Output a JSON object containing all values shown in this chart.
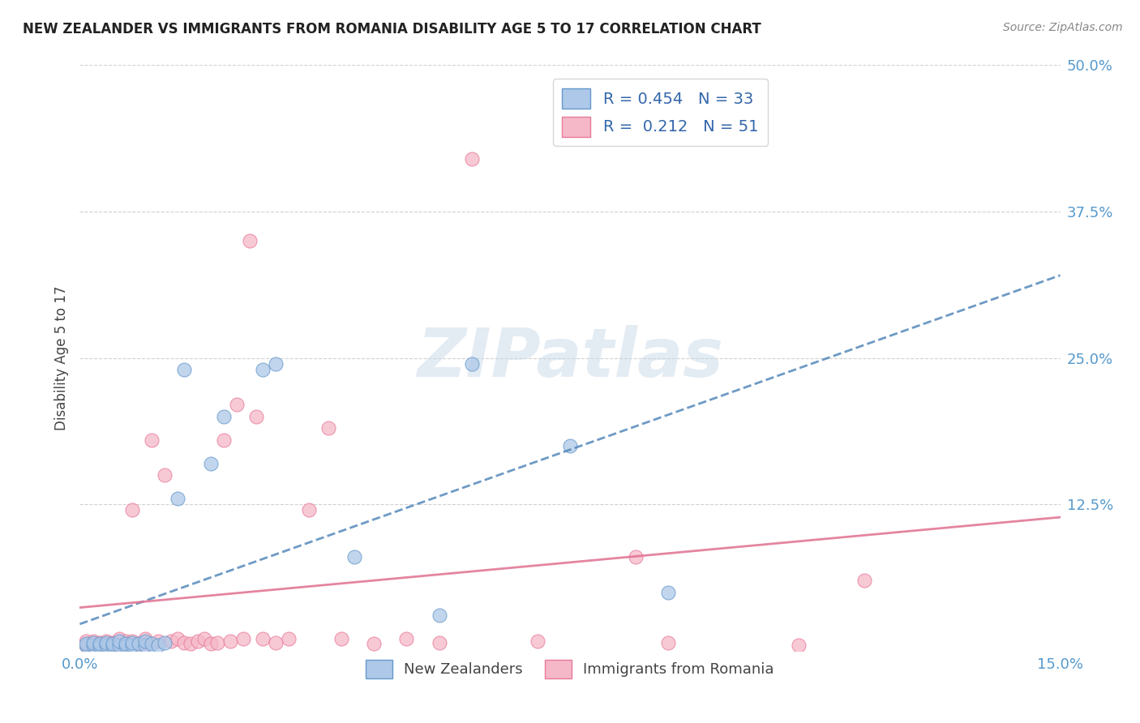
{
  "title": "NEW ZEALANDER VS IMMIGRANTS FROM ROMANIA DISABILITY AGE 5 TO 17 CORRELATION CHART",
  "source": "Source: ZipAtlas.com",
  "ylabel": "Disability Age 5 to 17",
  "xlim": [
    0.0,
    0.15
  ],
  "ylim": [
    0.0,
    0.5
  ],
  "xticks": [
    0.0,
    0.05,
    0.1,
    0.15
  ],
  "xticklabels": [
    "0.0%",
    "",
    "",
    "15.0%"
  ],
  "yticks": [
    0.0,
    0.125,
    0.25,
    0.375,
    0.5
  ],
  "yticklabels": [
    "",
    "12.5%",
    "25.0%",
    "37.5%",
    "50.0%"
  ],
  "legend_r_nz": "0.454",
  "legend_n_nz": "33",
  "legend_r_ro": "0.212",
  "legend_n_ro": "51",
  "color_nz": "#adc8e8",
  "color_ro": "#f5b8c8",
  "edge_nz": "#6699cc",
  "edge_ro": "#e87a9a",
  "trendline_nz_color": "#5588bb",
  "trendline_ro_color": "#e07090",
  "watermark_text": "ZIPatlas",
  "background_color": "#ffffff",
  "nz_points_x": [
    0.001,
    0.001,
    0.002,
    0.002,
    0.003,
    0.003,
    0.004,
    0.004,
    0.005,
    0.005,
    0.006,
    0.006,
    0.007,
    0.007,
    0.008,
    0.008,
    0.009,
    0.01,
    0.01,
    0.011,
    0.012,
    0.013,
    0.015,
    0.016,
    0.02,
    0.022,
    0.028,
    0.03,
    0.042,
    0.055,
    0.06,
    0.075,
    0.09
  ],
  "nz_points_y": [
    0.005,
    0.006,
    0.005,
    0.007,
    0.004,
    0.006,
    0.005,
    0.007,
    0.004,
    0.006,
    0.005,
    0.008,
    0.004,
    0.006,
    0.005,
    0.007,
    0.006,
    0.005,
    0.008,
    0.006,
    0.005,
    0.007,
    0.13,
    0.24,
    0.16,
    0.2,
    0.24,
    0.245,
    0.08,
    0.03,
    0.245,
    0.175,
    0.05
  ],
  "ro_points_x": [
    0.001,
    0.001,
    0.002,
    0.002,
    0.003,
    0.003,
    0.004,
    0.004,
    0.005,
    0.005,
    0.006,
    0.006,
    0.007,
    0.007,
    0.008,
    0.008,
    0.009,
    0.01,
    0.01,
    0.011,
    0.012,
    0.013,
    0.014,
    0.015,
    0.016,
    0.017,
    0.018,
    0.019,
    0.02,
    0.021,
    0.022,
    0.023,
    0.024,
    0.025,
    0.026,
    0.027,
    0.028,
    0.03,
    0.032,
    0.035,
    0.038,
    0.04,
    0.045,
    0.05,
    0.055,
    0.06,
    0.07,
    0.085,
    0.09,
    0.11,
    0.12
  ],
  "ro_points_y": [
    0.005,
    0.008,
    0.006,
    0.008,
    0.005,
    0.007,
    0.006,
    0.008,
    0.005,
    0.007,
    0.005,
    0.01,
    0.006,
    0.008,
    0.12,
    0.008,
    0.006,
    0.007,
    0.01,
    0.18,
    0.008,
    0.15,
    0.008,
    0.01,
    0.007,
    0.006,
    0.008,
    0.01,
    0.006,
    0.007,
    0.18,
    0.008,
    0.21,
    0.01,
    0.35,
    0.2,
    0.01,
    0.007,
    0.01,
    0.12,
    0.19,
    0.01,
    0.006,
    0.01,
    0.007,
    0.42,
    0.008,
    0.08,
    0.007,
    0.005,
    0.06
  ]
}
